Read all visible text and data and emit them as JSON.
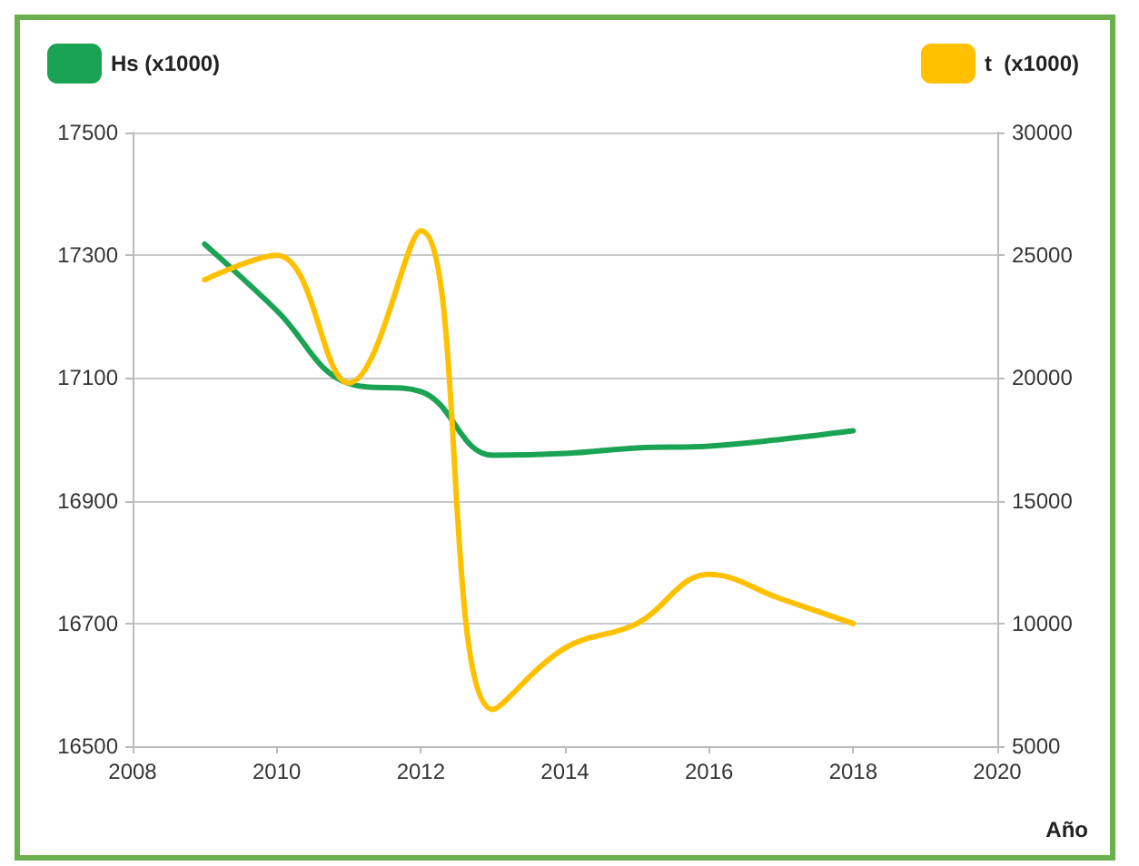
{
  "chart_data": {
    "type": "line",
    "xlabel": "Año",
    "x": [
      2009,
      2010,
      2011,
      2012,
      2013,
      2014,
      2015,
      2016,
      2017,
      2018
    ],
    "series": [
      {
        "name": "Hs (x1000)",
        "color": "#1aa352",
        "values": [
          17318,
          17210,
          17091,
          17078,
          16974,
          16977,
          16986,
          16989,
          17000,
          17014
        ]
      },
      {
        "name": "t  (x1000)",
        "color": "#ffc000",
        "axis": "y2",
        "values": [
          24000,
          25000,
          19800,
          26000,
          6500,
          9000,
          10000,
          12000,
          11000,
          10000
        ]
      }
    ],
    "xlim": [
      2008,
      2020
    ],
    "xticks": [
      2008,
      2010,
      2012,
      2014,
      2016,
      2018,
      2020
    ],
    "ylim": [
      16500,
      17500
    ],
    "yticks": [
      16500,
      16700,
      16900,
      17100,
      17300,
      17500
    ],
    "y2lim": [
      5000,
      30000
    ],
    "y2ticks": [
      5000,
      10000,
      15000,
      20000,
      25000,
      30000
    ],
    "grid": "y",
    "legend": "top",
    "marker": "none",
    "line_style": "solid"
  }
}
